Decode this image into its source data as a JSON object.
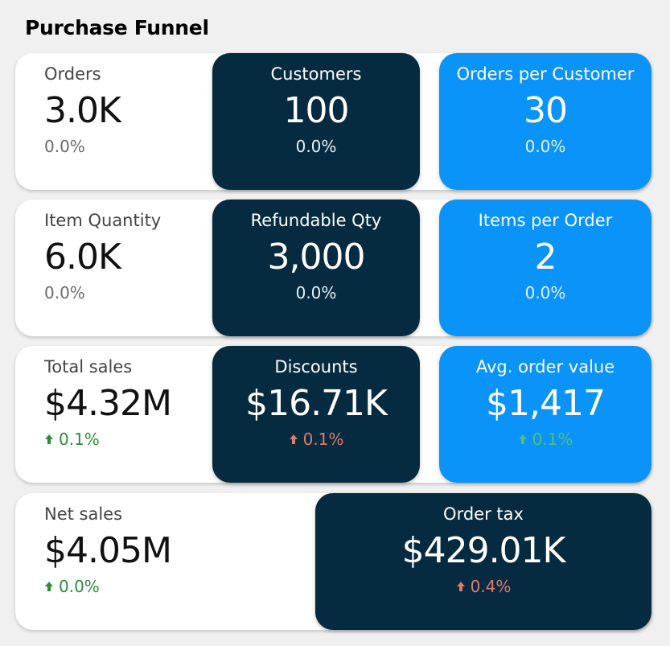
{
  "page": {
    "title": "Purchase Funnel"
  },
  "rows": [
    {
      "cards": [
        {
          "label": "Orders",
          "value": "3.0K",
          "delta": "0.0%"
        },
        {
          "label": "Customers",
          "value": "100",
          "delta": "0.0%"
        },
        {
          "label": "Orders per Customer",
          "value": "30",
          "delta": "0.0%"
        }
      ]
    },
    {
      "cards": [
        {
          "label": "Item Quantity",
          "value": "6.0K",
          "delta": "0.0%"
        },
        {
          "label": "Refundable Qty",
          "value": "3,000",
          "delta": "0.0%"
        },
        {
          "label": "Items per Order",
          "value": "2",
          "delta": "0.0%"
        }
      ]
    },
    {
      "cards": [
        {
          "label": "Total sales",
          "value": "$4.32M",
          "delta": "0.1%",
          "trend": "up",
          "trend_color": "#2e8b3c"
        },
        {
          "label": "Discounts",
          "value": "$16.71K",
          "delta": "0.1%",
          "trend": "up",
          "trend_color": "#e07a6a"
        },
        {
          "label": "Avg. order value",
          "value": "$1,417",
          "delta": "0.1%",
          "trend": "up",
          "trend_color": "#4fc07a"
        }
      ]
    },
    {
      "cards": [
        {
          "label": "Net sales",
          "value": "$4.05M",
          "delta": "0.0%",
          "trend": "up",
          "trend_color": "#2e8b3c"
        },
        {
          "label": "Order tax",
          "value": "$429.01K",
          "delta": "0.4%",
          "trend": "up",
          "trend_color": "#e07a6a"
        }
      ]
    }
  ],
  "colors": {
    "dark_card": "#062b40",
    "blue_card": "#0a93f9",
    "background": "#f0f0f0"
  },
  "icons": {
    "trend_up": "arrow-up-icon"
  }
}
